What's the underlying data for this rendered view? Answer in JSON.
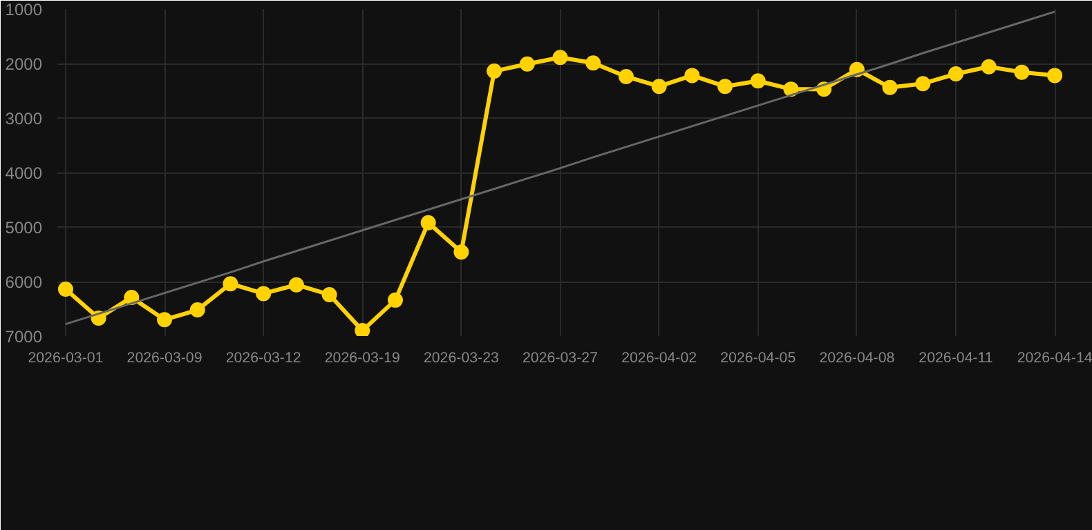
{
  "chart_data": {
    "type": "line",
    "categories": [
      "2026-03-01",
      null,
      null,
      "2026-03-09",
      null,
      null,
      "2026-03-12",
      null,
      null,
      "2026-03-19",
      null,
      null,
      "2026-03-23",
      null,
      null,
      "2026-03-27",
      null,
      null,
      "2026-04-02",
      null,
      null,
      "2026-04-05",
      null,
      null,
      "2026-04-08",
      null,
      null,
      "2026-04-11",
      null,
      null,
      "2026-04-14"
    ],
    "series": [
      {
        "color": "#ffd200",
        "marker": "circle",
        "line_style": "solid",
        "values": [
          6140,
          6670,
          6290,
          6700,
          6520,
          6040,
          6220,
          6060,
          6240,
          6900,
          6340,
          4920,
          5460,
          2140,
          2010,
          1890,
          1990,
          2240,
          2420,
          2220,
          2420,
          2320,
          2470,
          2470,
          2110,
          2440,
          2370,
          2190,
          2060,
          2160,
          2220
        ]
      },
      {
        "type": "line",
        "color": "#666666",
        "marker": "none",
        "line_style": "solid",
        "values": [
          6780,
          6590,
          6400,
          6210,
          6020,
          5830,
          5630,
          5440,
          5250,
          5060,
          4870,
          4680,
          4490,
          4300,
          4110,
          3920,
          3720,
          3530,
          3340,
          3150,
          2960,
          2770,
          2580,
          2390,
          2200,
          2010,
          1810,
          1620,
          1430,
          1240,
          1050
        ]
      }
    ],
    "ylim": [
      7000,
      1000
    ],
    "yticks": [
      1000,
      2000,
      3000,
      4000,
      5000,
      6000,
      7000
    ],
    "grid": true
  }
}
